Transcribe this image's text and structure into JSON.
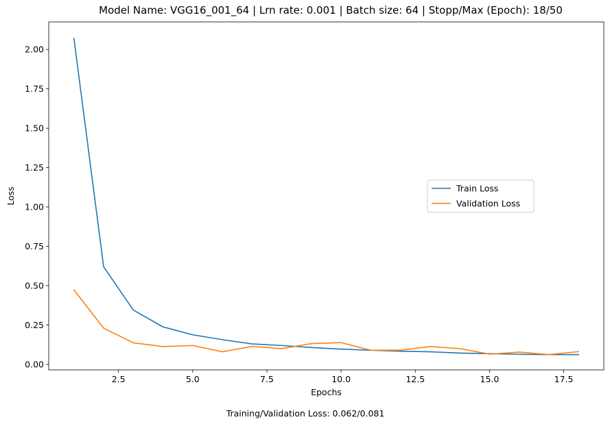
{
  "chart_data": {
    "type": "line",
    "title": "Model Name: VGG16_001_64 | Lrn rate: 0.001 | Batch size: 64 | Stopp/Max (Epoch): 18/50",
    "xlabel": "Epochs",
    "ylabel": "Loss",
    "footer": "Training/Validation Loss: 0.062/0.081",
    "xlim": [
      0.15,
      18.85
    ],
    "ylim": [
      -0.035,
      2.175
    ],
    "xticks": [
      2.5,
      5.0,
      7.5,
      10.0,
      12.5,
      15.0,
      17.5
    ],
    "xtick_labels": [
      "2.5",
      "5.0",
      "7.5",
      "10.0",
      "12.5",
      "15.0",
      "17.5"
    ],
    "yticks": [
      0.0,
      0.25,
      0.5,
      0.75,
      1.0,
      1.25,
      1.5,
      1.75,
      2.0
    ],
    "ytick_labels": [
      "0.00",
      "0.25",
      "0.50",
      "0.75",
      "1.00",
      "1.25",
      "1.50",
      "1.75",
      "2.00"
    ],
    "grid": false,
    "legend": "center-right",
    "x": [
      1,
      2,
      3,
      4,
      5,
      6,
      7,
      8,
      9,
      10,
      11,
      12,
      13,
      14,
      15,
      16,
      17,
      18
    ],
    "series": [
      {
        "name": "Train Loss",
        "color": "#1f77b4",
        "values": [
          2.07,
          0.62,
          0.345,
          0.238,
          0.188,
          0.157,
          0.13,
          0.12,
          0.107,
          0.097,
          0.09,
          0.084,
          0.08,
          0.072,
          0.068,
          0.064,
          0.062,
          0.062
        ]
      },
      {
        "name": "Validation Loss",
        "color": "#ff7f0e",
        "values": [
          0.473,
          0.23,
          0.137,
          0.113,
          0.12,
          0.08,
          0.114,
          0.1,
          0.132,
          0.138,
          0.09,
          0.09,
          0.113,
          0.1,
          0.065,
          0.078,
          0.062,
          0.081
        ]
      }
    ]
  }
}
